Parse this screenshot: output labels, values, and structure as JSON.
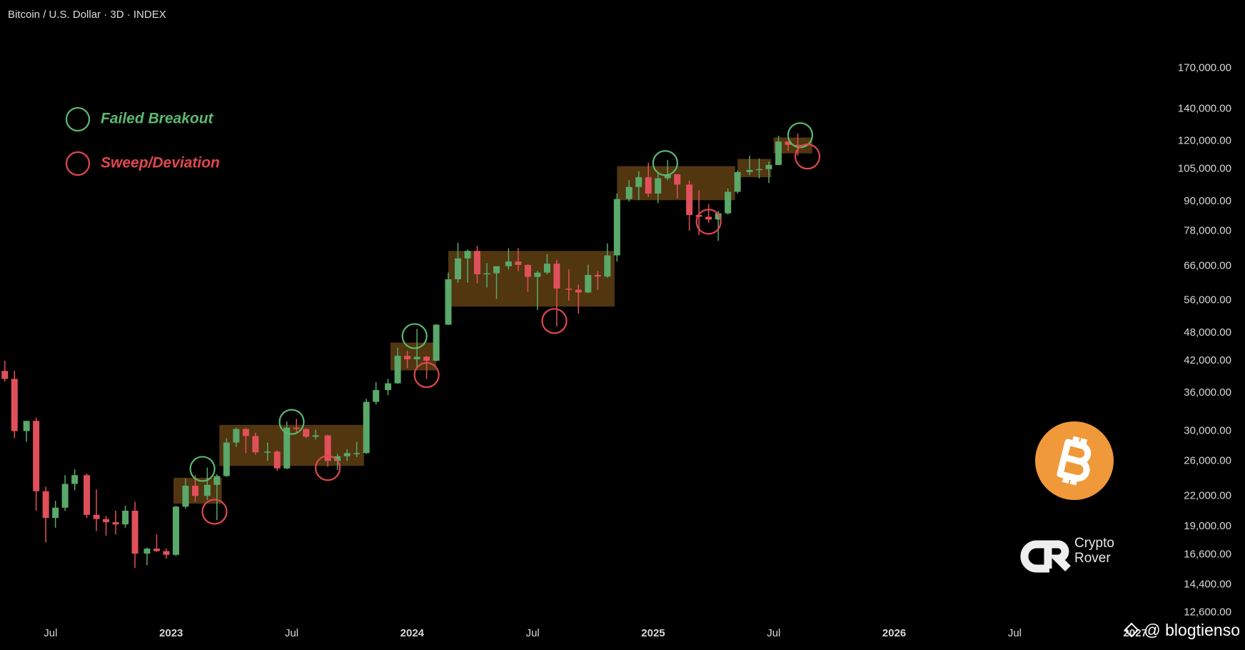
{
  "chart_data": {
    "type": "candlestick",
    "title": "Bitcoin / U.S. Dollar · 3D · INDEX",
    "x": [
      2022.31,
      2022.35,
      2022.4,
      2022.44,
      2022.48,
      2022.52,
      2022.56,
      2022.6,
      2022.65,
      2022.69,
      2022.73,
      2022.77,
      2022.81,
      2022.85,
      2022.9,
      2022.94,
      2022.98,
      2023.02,
      2023.06,
      2023.1,
      2023.15,
      2023.19,
      2023.23,
      2023.27,
      2023.31,
      2023.35,
      2023.4,
      2023.44,
      2023.48,
      2023.52,
      2023.56,
      2023.6,
      2023.65,
      2023.69,
      2023.73,
      2023.77,
      2023.81,
      2023.85,
      2023.9,
      2023.94,
      2023.98,
      2024.02,
      2024.06,
      2024.1,
      2024.15,
      2024.19,
      2024.23,
      2024.27,
      2024.31,
      2024.35,
      2024.4,
      2024.44,
      2024.48,
      2024.52,
      2024.56,
      2024.6,
      2024.65,
      2024.69,
      2024.73,
      2024.77,
      2024.81,
      2024.85,
      2024.9,
      2024.94,
      2024.98,
      2025.02,
      2025.06,
      2025.1,
      2025.15,
      2025.19,
      2025.23,
      2025.27,
      2025.31,
      2025.35,
      2025.4,
      2025.44,
      2025.48,
      2025.52,
      2025.56,
      2025.6
    ],
    "open": [
      40000,
      38500,
      30000,
      31500,
      22500,
      19800,
      20800,
      23300,
      24300,
      20100,
      19700,
      19400,
      19200,
      20500,
      16700,
      17100,
      16900,
      16600,
      20900,
      23100,
      22000,
      23200,
      24200,
      28400,
      30300,
      29300,
      27100,
      27200,
      25100,
      30500,
      30300,
      29200,
      29400,
      26000,
      26600,
      27000,
      27000,
      34500,
      36500,
      37700,
      43000,
      42300,
      42800,
      42000,
      49900,
      62000,
      68500,
      71000,
      63500,
      63800,
      66000,
      67500,
      66400,
      62700,
      64000,
      66800,
      59300,
      59000,
      58200,
      63300,
      62800,
      69500,
      91000,
      96400,
      101000,
      93400,
      100500,
      102400,
      97500,
      84300,
      83600,
      82500,
      85000,
      94200,
      103500,
      104600,
      105000,
      107100,
      119800,
      117900
    ],
    "high": [
      42000,
      40000,
      31500,
      32000,
      23000,
      21500,
      24300,
      25000,
      24500,
      22700,
      20000,
      20500,
      21000,
      21400,
      17200,
      18300,
      17100,
      21000,
      23900,
      24300,
      25200,
      24400,
      29000,
      30500,
      30400,
      29800,
      28400,
      27400,
      31400,
      31800,
      30400,
      30200,
      29500,
      26900,
      27500,
      28500,
      35000,
      37900,
      38500,
      44700,
      44000,
      48900,
      43000,
      50000,
      64000,
      73800,
      71500,
      72700,
      67000,
      66000,
      71900,
      71900,
      66600,
      64500,
      69900,
      68000,
      65000,
      60500,
      66500,
      64500,
      73600,
      93400,
      99600,
      104000,
      108300,
      102700,
      109600,
      102500,
      99500,
      95000,
      88800,
      86000,
      95700,
      104300,
      111900,
      110500,
      108900,
      123200,
      120000,
      124500
    ],
    "low": [
      38000,
      29000,
      28500,
      20500,
      17600,
      18900,
      20500,
      22600,
      19800,
      18600,
      18200,
      18300,
      18900,
      15600,
      15800,
      16800,
      16300,
      16500,
      20700,
      21400,
      21600,
      19600,
      24100,
      27800,
      27000,
      26800,
      26000,
      24800,
      25000,
      29700,
      29000,
      28800,
      25300,
      24900,
      26000,
      26500,
      26900,
      34100,
      35600,
      37600,
      40500,
      40700,
      38500,
      41900,
      49800,
      61000,
      61000,
      60800,
      59600,
      56500,
      65000,
      64500,
      58400,
      53500,
      63500,
      49500,
      56000,
      52600,
      58000,
      58900,
      62500,
      67500,
      90000,
      90500,
      92000,
      89200,
      99500,
      91200,
      78200,
      76600,
      81200,
      74500,
      84500,
      93400,
      102000,
      100400,
      98200,
      107000,
      114500,
      112000
    ],
    "close": [
      38500,
      30000,
      31500,
      22500,
      19800,
      20800,
      23300,
      24300,
      20100,
      19700,
      19400,
      19200,
      20500,
      16700,
      17100,
      16900,
      16600,
      20900,
      23100,
      22000,
      23200,
      24200,
      28400,
      30300,
      29300,
      27100,
      27200,
      25100,
      30500,
      30300,
      29200,
      29400,
      26000,
      26600,
      27000,
      27000,
      34500,
      36500,
      37700,
      43000,
      42300,
      42800,
      42000,
      49900,
      62000,
      68500,
      71000,
      63500,
      63800,
      66000,
      67500,
      66400,
      62700,
      64000,
      66800,
      59300,
      59000,
      58200,
      63300,
      62800,
      69500,
      91000,
      96400,
      101000,
      93400,
      100500,
      102400,
      97500,
      84300,
      83600,
      82500,
      85000,
      94200,
      103500,
      104600,
      105000,
      107100,
      119800,
      117900,
      117500
    ],
    "up_color": "#5aa86a",
    "down_color": "#e0505a",
    "xlim": [
      2022.29,
      2027.1
    ],
    "xticks": [
      {
        "value": 2022.5,
        "label": "Jul"
      },
      2023,
      {
        "value": 2023.5,
        "label": "Jul"
      },
      2024,
      {
        "value": 2024.5,
        "label": "Jul"
      },
      2025,
      {
        "value": 2025.5,
        "label": "Jul"
      },
      2026,
      {
        "value": 2026.5,
        "label": "Jul"
      },
      2027
    ],
    "ylim": [
      11950,
      235700
    ],
    "log_scale": true,
    "yticks": [
      {
        "value": 170000,
        "label": "170,000.00"
      },
      {
        "value": 140000,
        "label": "140,000.00"
      },
      {
        "value": 120000,
        "label": "120,000.00"
      },
      {
        "value": 105000,
        "label": "105,000.00"
      },
      {
        "value": 90000,
        "label": "90,000.00"
      },
      {
        "value": 78000,
        "label": "78,000.00"
      },
      {
        "value": 66000,
        "label": "66,000.00"
      },
      {
        "value": 56000,
        "label": "56,000.00"
      },
      {
        "value": 48000,
        "label": "48,000.00"
      },
      {
        "value": 42000,
        "label": "42,000.00"
      },
      {
        "value": 36000,
        "label": "36,000.00"
      },
      {
        "value": 30000,
        "label": "30,000.00"
      },
      {
        "value": 26000,
        "label": "26,000.00"
      },
      {
        "value": 22000,
        "label": "22,000.00"
      },
      {
        "value": 19000,
        "label": "19,000.00"
      },
      {
        "value": 16600,
        "label": "16,600.00"
      },
      {
        "value": 14400,
        "label": "14,400.00"
      },
      {
        "value": 12600,
        "label": "12,600.00"
      }
    ],
    "zone_color": "#5a3c12",
    "zones": [
      {
        "x": [
          2023.01,
          2023.21
        ],
        "y": [
          21200,
          24000
        ]
      },
      {
        "x": [
          2023.2,
          2023.8
        ],
        "y": [
          25400,
          30900
        ]
      },
      {
        "x": [
          2023.91,
          2024.1
        ],
        "y": [
          40100,
          45800
        ]
      },
      {
        "x": [
          2024.15,
          2024.84
        ],
        "y": [
          54400,
          71000
        ]
      },
      {
        "x": [
          2024.85,
          2025.34
        ],
        "y": [
          90500,
          106500
        ]
      },
      {
        "x": [
          2025.35,
          2025.49
        ],
        "y": [
          101000,
          110200
        ]
      },
      {
        "x": [
          2025.5,
          2025.66
        ],
        "y": [
          113200,
          122100
        ]
      }
    ],
    "annotations": [
      {
        "name": "Failed Breakout",
        "color": "#5cb870",
        "points": [
          {
            "x": 2023.13,
            "y": 25040
          },
          {
            "x": 2023.5,
            "y": 31350
          },
          {
            "x": 2024.01,
            "y": 47240
          },
          {
            "x": 2025.05,
            "y": 108100
          },
          {
            "x": 2025.61,
            "y": 123500
          }
        ]
      },
      {
        "name": "Sweep/Deviation",
        "color": "#e0484e",
        "points": [
          {
            "x": 2023.18,
            "y": 20400
          },
          {
            "x": 2023.65,
            "y": 25140
          },
          {
            "x": 2024.06,
            "y": 39220
          },
          {
            "x": 2024.59,
            "y": 50780
          },
          {
            "x": 2025.23,
            "y": 81650
          },
          {
            "x": 2025.64,
            "y": 111500
          }
        ]
      }
    ]
  },
  "brand": {
    "line1": "Crypto",
    "line2": "Rover"
  },
  "watermark": "@ blogtienso"
}
